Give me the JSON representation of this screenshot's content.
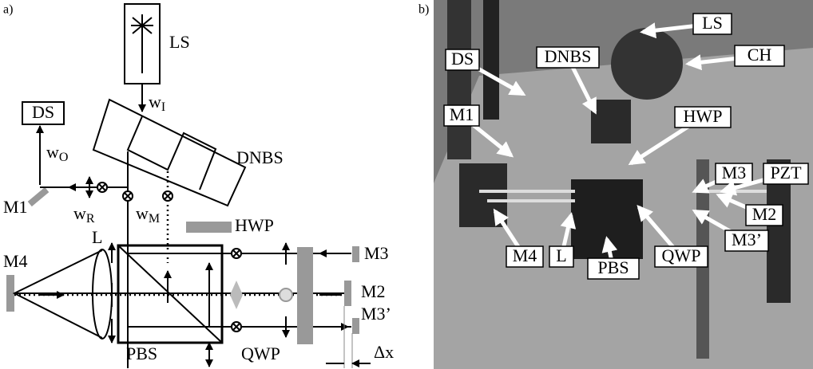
{
  "panel_a": {
    "tag": "a)",
    "labels": {
      "ls": "LS",
      "ds": "DS",
      "dnbs": "DNBS",
      "m1": "M1",
      "hwp": "HWP",
      "l": "L",
      "m4": "M4",
      "pbs": "PBS",
      "qwp": "QWP",
      "m3": "M3",
      "m2": "M2",
      "m3p": "M3’",
      "dx": "Δx"
    },
    "beams": {
      "wi": {
        "base": "w",
        "sub": "I"
      },
      "wo": {
        "base": "w",
        "sub": "O"
      },
      "wr": {
        "base": "w",
        "sub": "R"
      },
      "wm": {
        "base": "w",
        "sub": "M"
      }
    }
  },
  "panel_b": {
    "tag": "b)",
    "labels": [
      "LS",
      "CH",
      "DS",
      "DNBS",
      "M1",
      "HWP",
      "M3",
      "PZT",
      "M2",
      "M3’",
      "M4",
      "L",
      "PBS",
      "QWP"
    ]
  }
}
